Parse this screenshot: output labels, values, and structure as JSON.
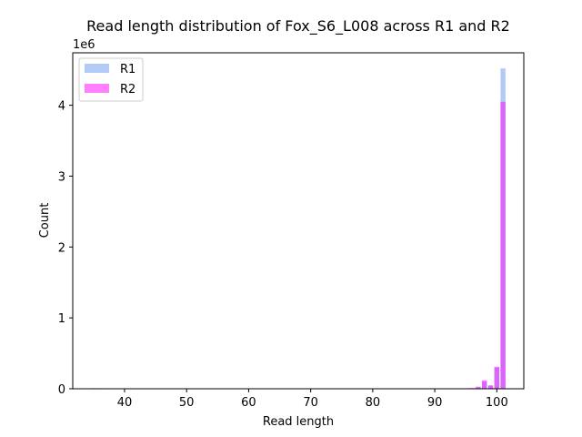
{
  "chart_data": {
    "type": "bar",
    "title": "Read length distribution of Fox_S6_L008 across R1 and R2",
    "xlabel": "Read length",
    "ylabel": "Count",
    "y_offset_label": "1e6",
    "xlim": [
      31.65,
      104.35
    ],
    "ylim": [
      0,
      4.74
    ],
    "y_scale_multiplier": 1000000,
    "x_ticks": [
      40,
      50,
      60,
      70,
      80,
      90,
      100
    ],
    "y_ticks": [
      0,
      1,
      2,
      3,
      4
    ],
    "bin_width": 0.8,
    "legend": {
      "placement": "top-left"
    },
    "series": [
      {
        "name": "R1",
        "color": "#a4c2f4",
        "opacity": 0.85,
        "points": [
          {
            "x": 35,
            "y": 0.006
          },
          {
            "x": 36,
            "y": 0.005
          },
          {
            "x": 37,
            "y": 0.004
          },
          {
            "x": 97,
            "y": 0.02
          },
          {
            "x": 98,
            "y": 0.1
          },
          {
            "x": 99,
            "y": 0.04
          },
          {
            "x": 100,
            "y": 0.3
          },
          {
            "x": 101,
            "y": 4.52
          }
        ]
      },
      {
        "name": "R2",
        "color": "#ff00ff",
        "opacity": 0.5,
        "points": [
          {
            "x": 35,
            "y": 0.008
          },
          {
            "x": 36,
            "y": 0.007
          },
          {
            "x": 37,
            "y": 0.005
          },
          {
            "x": 96,
            "y": 0.01
          },
          {
            "x": 97,
            "y": 0.03
          },
          {
            "x": 98,
            "y": 0.12
          },
          {
            "x": 99,
            "y": 0.05
          },
          {
            "x": 100,
            "y": 0.31
          },
          {
            "x": 101,
            "y": 4.05
          }
        ]
      }
    ]
  }
}
